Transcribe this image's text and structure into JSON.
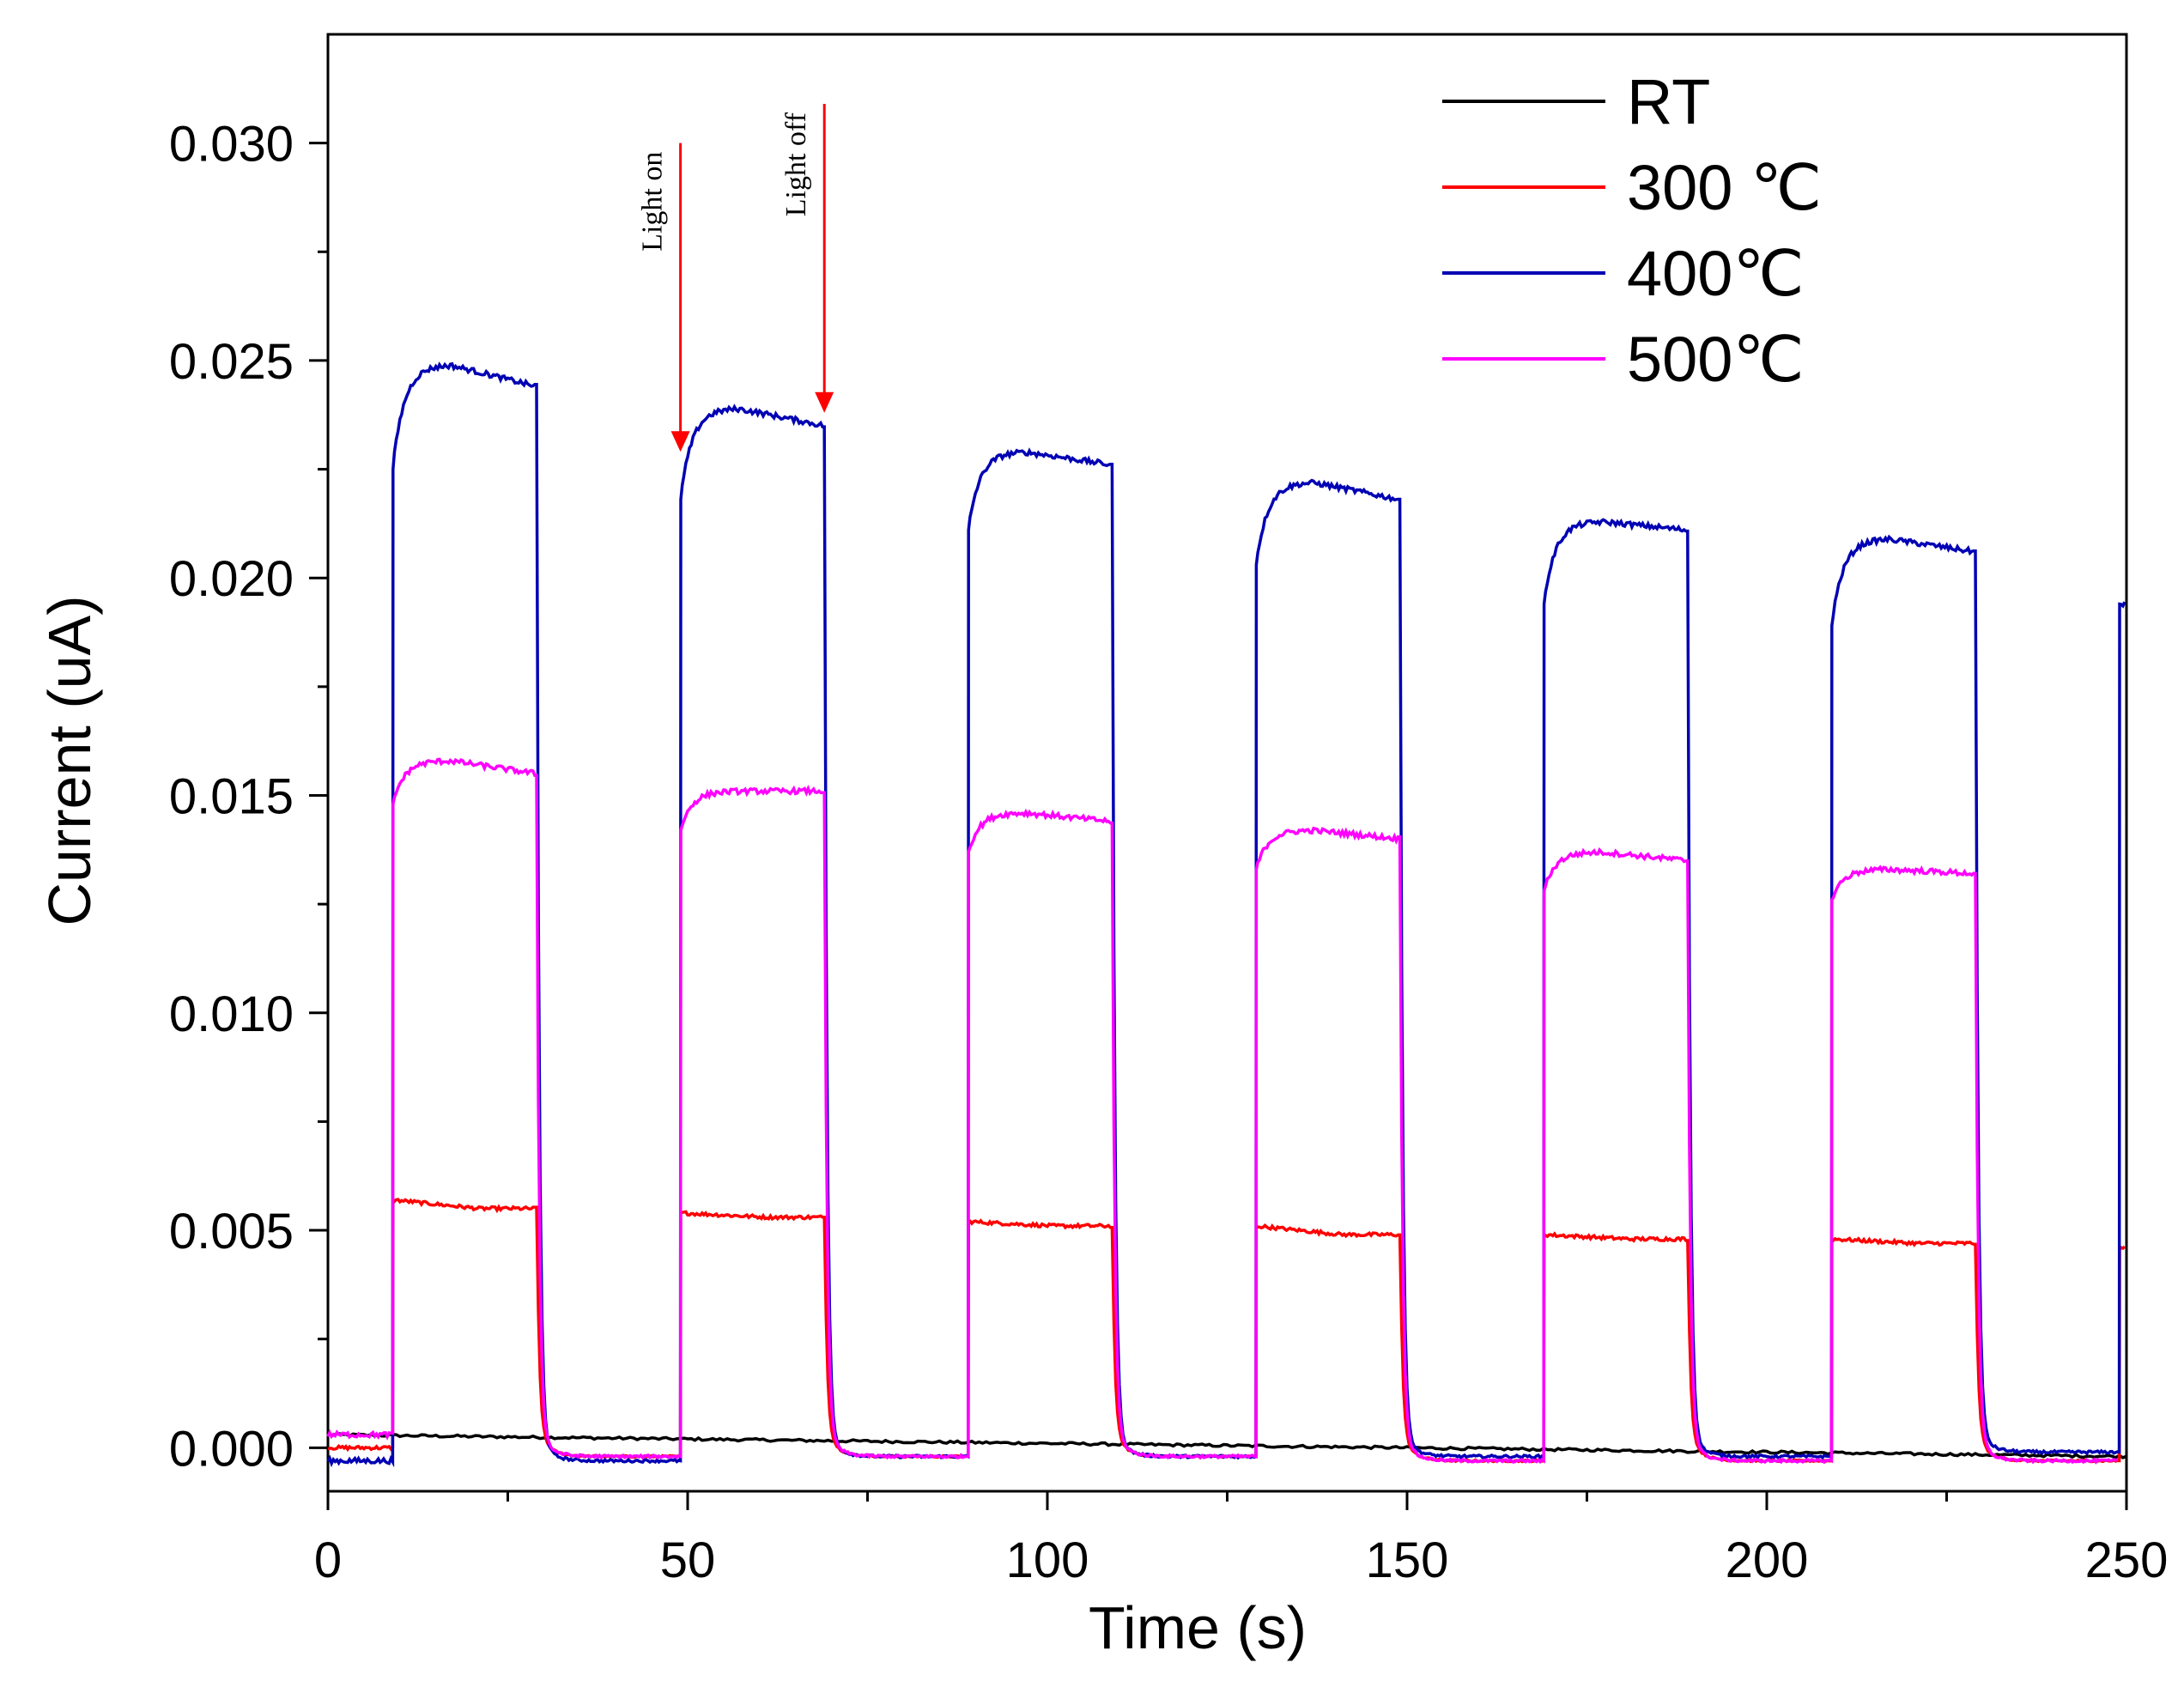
{
  "chart_data": {
    "type": "line",
    "title": "",
    "xlabel": "Time (s)",
    "ylabel": "Current (uA)",
    "xlim": [
      0,
      250
    ],
    "ylim": [
      -0.001,
      0.0325
    ],
    "xticks": [
      0,
      50,
      100,
      150,
      200,
      250
    ],
    "xtick_labels": [
      "0",
      "50",
      "100",
      "150",
      "200",
      "250"
    ],
    "yticks": [
      0.0,
      0.005,
      0.01,
      0.015,
      0.02,
      0.025,
      0.03
    ],
    "ytick_labels": [
      "0.000",
      "0.005",
      "0.010",
      "0.015",
      "0.020",
      "0.025",
      "0.030"
    ],
    "grid": false,
    "legend_position": "top-right",
    "light_on_times": [
      9,
      49,
      89,
      129,
      169,
      209,
      249
    ],
    "light_off_times": [
      29,
      69,
      109,
      149,
      189,
      229
    ],
    "series": [
      {
        "name": "RT",
        "color": "#000000",
        "baseline_start": 0.0003,
        "baseline_end": -0.0002
      },
      {
        "name": "300 ℃",
        "color": "#ff0000",
        "on_start": [
          0.0057,
          0.0054,
          0.0052,
          0.0051,
          0.0049,
          0.0048,
          0.0046
        ],
        "on_end": [
          0.0055,
          0.0053,
          0.0051,
          0.0049,
          0.0048,
          0.0047
        ],
        "dark": [
          0.0,
          -0.0002,
          -0.0002,
          -0.0002,
          -0.0003,
          -0.0003,
          -0.0003
        ]
      },
      {
        "name": "400℃",
        "color": "#0000b4",
        "on_start": [
          0.0225,
          0.0218,
          0.0211,
          0.0203,
          0.0194,
          0.0189,
          0.0194
        ],
        "on_peak": [
          0.0249,
          0.0239,
          0.0229,
          0.0222,
          0.0213,
          0.0209
        ],
        "on_end": [
          0.0244,
          0.0235,
          0.0226,
          0.0218,
          0.0211,
          0.0206
        ],
        "dark": [
          -0.0003,
          -0.0003,
          -0.0002,
          -0.0002,
          -0.0002,
          -0.0002,
          -0.0001
        ]
      },
      {
        "name": "500℃",
        "color": "#ff00ff",
        "on_start": [
          0.0148,
          0.0142,
          0.0137,
          0.0133,
          0.0128,
          0.0126
        ],
        "on_peak": [
          0.0158,
          0.0151,
          0.0146,
          0.0142,
          0.0137,
          0.0133
        ],
        "on_end": [
          0.0155,
          0.0151,
          0.0144,
          0.014,
          0.0135,
          0.0132
        ],
        "dark": [
          0.0003,
          -0.0002,
          -0.0002,
          -0.0002,
          -0.0003,
          -0.0003,
          -0.0003
        ]
      }
    ],
    "annotations": [
      {
        "text": "Light on",
        "x": 49,
        "y_top": 0.03,
        "y_tip": 0.0229,
        "color": "#ff0000"
      },
      {
        "text": "Light off",
        "x": 69,
        "y_top": 0.0309,
        "y_tip": 0.0238,
        "color": "#ff0000"
      }
    ]
  }
}
